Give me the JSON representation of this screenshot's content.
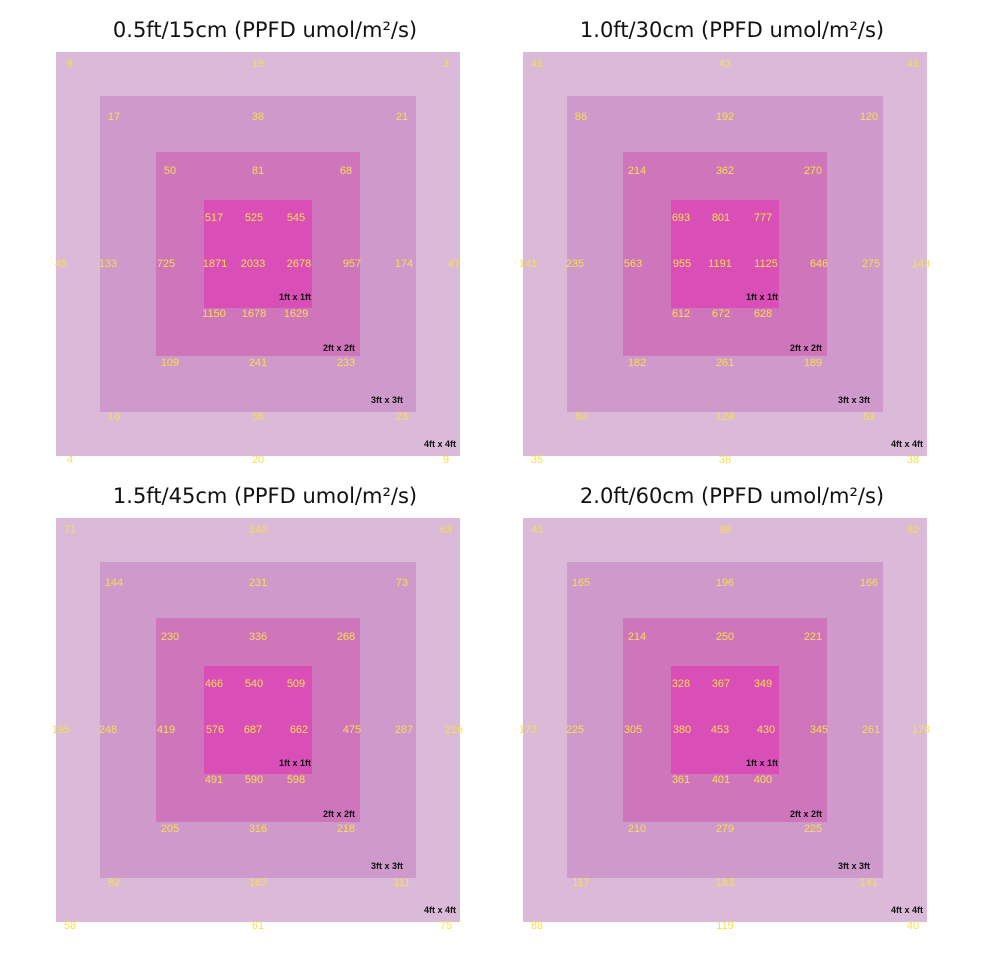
{
  "colors": {
    "zone_4ft": "#dbb9d9",
    "zone_3ft": "#cd9acb",
    "zone_2ft": "#cf75bb",
    "zone_1ft": "#d94eb7",
    "value_text": "#f5e04a",
    "label_text": "#111111"
  },
  "zone_labels": [
    "1ft x 1ft",
    "2ft x 2ft",
    "3ft x 3ft",
    "4ft x 4ft"
  ],
  "panels": [
    {
      "title": "0.5ft/15cm (PPFD umol/m²/s)",
      "values": [
        [
          "8",
          "19",
          "3"
        ],
        [
          "17",
          "38",
          "21"
        ],
        [
          "50",
          "81",
          "68"
        ],
        [
          "517",
          "525",
          "545"
        ],
        [
          "45",
          "133",
          "725",
          "1871",
          "2033",
          "2678",
          "957",
          "174",
          "47"
        ],
        [
          "1150",
          "1678",
          "1629"
        ],
        [
          "109",
          "241",
          "233"
        ],
        [
          "16",
          "56",
          "23"
        ],
        [
          "4",
          "20",
          "9"
        ]
      ]
    },
    {
      "title": "1.0ft/30cm (PPFD umol/m²/s)",
      "values": [
        [
          "41",
          "43",
          "41"
        ],
        [
          "86",
          "192",
          "120"
        ],
        [
          "214",
          "362",
          "270"
        ],
        [
          "693",
          "801",
          "777"
        ],
        [
          "141",
          "235",
          "563",
          "955",
          "1191",
          "1125",
          "646",
          "275",
          "143"
        ],
        [
          "612",
          "672",
          "628"
        ],
        [
          "182",
          "261",
          "189"
        ],
        [
          "60",
          "124",
          "61"
        ],
        [
          "35",
          "36",
          "38"
        ]
      ]
    },
    {
      "title": "1.5ft/45cm (PPFD umol/m²/s)",
      "values": [
        [
          "71",
          "140",
          "63"
        ],
        [
          "144",
          "231",
          "73"
        ],
        [
          "230",
          "336",
          "268"
        ],
        [
          "466",
          "540",
          "509"
        ],
        [
          "195",
          "248",
          "419",
          "576",
          "687",
          "662",
          "475",
          "287",
          "216"
        ],
        [
          "491",
          "590",
          "598"
        ],
        [
          "205",
          "316",
          "218"
        ],
        [
          "82",
          "163",
          "111"
        ],
        [
          "58",
          "61",
          "75"
        ]
      ]
    },
    {
      "title": "2.0ft/60cm (PPFD umol/m²/s)",
      "values": [
        [
          "43",
          "99",
          "82"
        ],
        [
          "165",
          "196",
          "166"
        ],
        [
          "214",
          "250",
          "221"
        ],
        [
          "328",
          "367",
          "349"
        ],
        [
          "173",
          "225",
          "305",
          "380",
          "453",
          "430",
          "345",
          "261",
          "178"
        ],
        [
          "361",
          "401",
          "400"
        ],
        [
          "210",
          "279",
          "225"
        ],
        [
          "117",
          "183",
          "141"
        ],
        [
          "88",
          "119",
          "40"
        ]
      ]
    }
  ]
}
